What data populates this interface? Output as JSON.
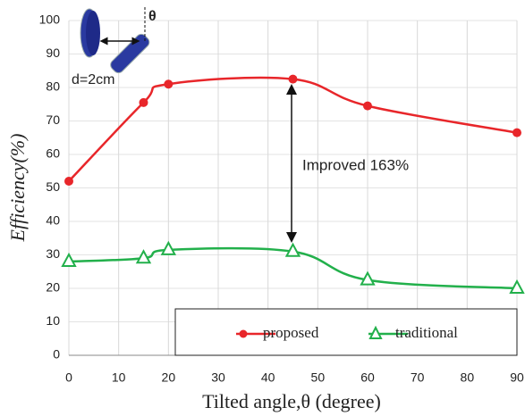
{
  "chart_data": {
    "type": "line",
    "x_label": "Tilted angle,θ (degree)",
    "y_label": "Efficiency(%)",
    "annotations": [
      "Improved 163%",
      "d=2cm",
      "θ"
    ],
    "xlim": [
      0,
      90
    ],
    "xticks": [
      0,
      10,
      20,
      30,
      40,
      50,
      60,
      70,
      80,
      90
    ],
    "ylim": [
      0,
      100
    ],
    "yticks": [
      0,
      10,
      20,
      30,
      40,
      50,
      60,
      70,
      80,
      90,
      100
    ],
    "grid": true,
    "legend": "bottom-right",
    "series": [
      {
        "name": "proposed",
        "color": "#e8262a",
        "marker": "circle",
        "x": [
          0,
          15,
          20,
          45,
          60,
          90
        ],
        "values": [
          52,
          75.5,
          81,
          82.5,
          74.5,
          66.5
        ]
      },
      {
        "name": "traditional",
        "color": "#22b04b",
        "marker": "triangle",
        "x": [
          0,
          15,
          20,
          45,
          60,
          90
        ],
        "values": [
          28,
          29,
          31.5,
          31,
          22.5,
          20
        ]
      }
    ]
  }
}
